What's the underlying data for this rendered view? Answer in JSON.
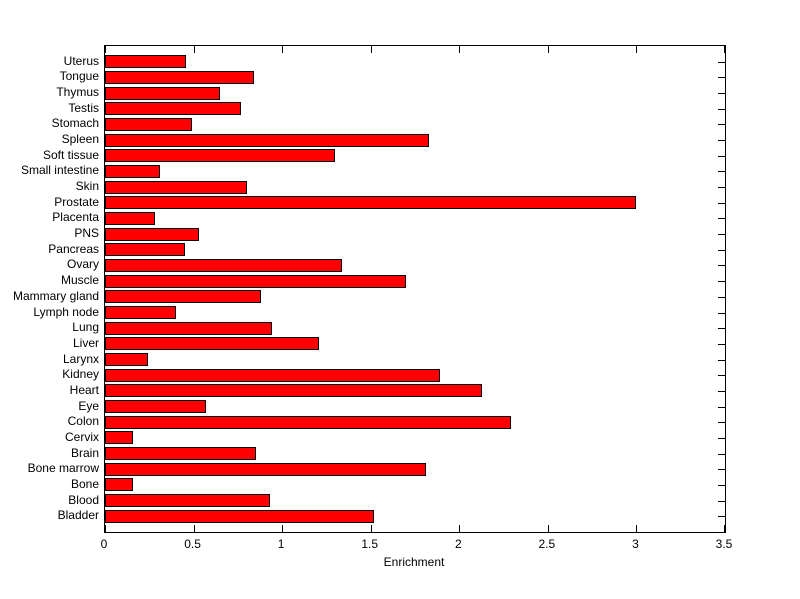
{
  "figure": {
    "background": "#ffffff",
    "axis_color": "#000000"
  },
  "chart_data": {
    "type": "bar",
    "orientation": "horizontal",
    "title": "",
    "xlabel": "Enrichment",
    "ylabel": "",
    "xlim": [
      0,
      3.5
    ],
    "xticks": [
      0,
      0.5,
      1,
      1.5,
      2,
      2.5,
      3,
      3.5
    ],
    "xtick_labels": [
      "0",
      "0.5",
      "1",
      "1.5",
      "2",
      "2.5",
      "3",
      "3.5"
    ],
    "grid": false,
    "bar_color": "#ff0000",
    "bar_edge_color": "#000000",
    "categories": [
      "Uterus",
      "Tongue",
      "Thymus",
      "Testis",
      "Stomach",
      "Spleen",
      "Soft tissue",
      "Small intestine",
      "Skin",
      "Prostate",
      "Placenta",
      "PNS",
      "Pancreas",
      "Ovary",
      "Muscle",
      "Mammary gland",
      "Lymph node",
      "Lung",
      "Liver",
      "Larynx",
      "Kidney",
      "Heart",
      "Eye",
      "Colon",
      "Cervix",
      "Brain",
      "Bone marrow",
      "Bone",
      "Blood",
      "Bladder"
    ],
    "values": [
      0.46,
      0.84,
      0.65,
      0.77,
      0.49,
      1.83,
      1.3,
      0.31,
      0.8,
      3.0,
      0.28,
      0.53,
      0.45,
      1.34,
      1.7,
      0.88,
      0.4,
      0.94,
      1.21,
      0.24,
      1.89,
      2.13,
      0.57,
      2.29,
      0.16,
      0.85,
      1.81,
      0.16,
      0.93,
      1.52
    ]
  }
}
